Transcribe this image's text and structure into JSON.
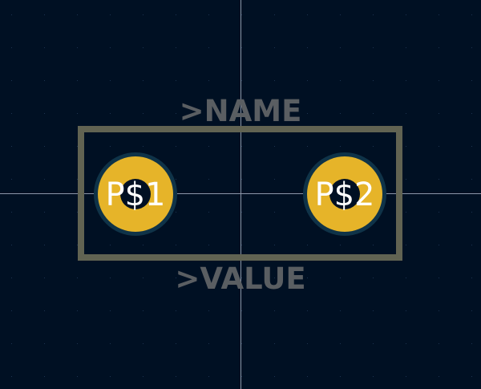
{
  "footprint": {
    "name_label": ">NAME",
    "value_label": ">VALUE",
    "pads": [
      {
        "label": "P$1"
      },
      {
        "label": "P$2"
      }
    ]
  },
  "colors": {
    "background": "#001023",
    "grid_dot": "#1c3350",
    "crosshair": "#8c96a8",
    "silkscreen": "#616352",
    "pad_fill": "#e6b429",
    "pad_ring": "#0f3348",
    "drill_hole": "#001023",
    "pad_text": "#ffffff",
    "label_text": "#5a5e62"
  }
}
